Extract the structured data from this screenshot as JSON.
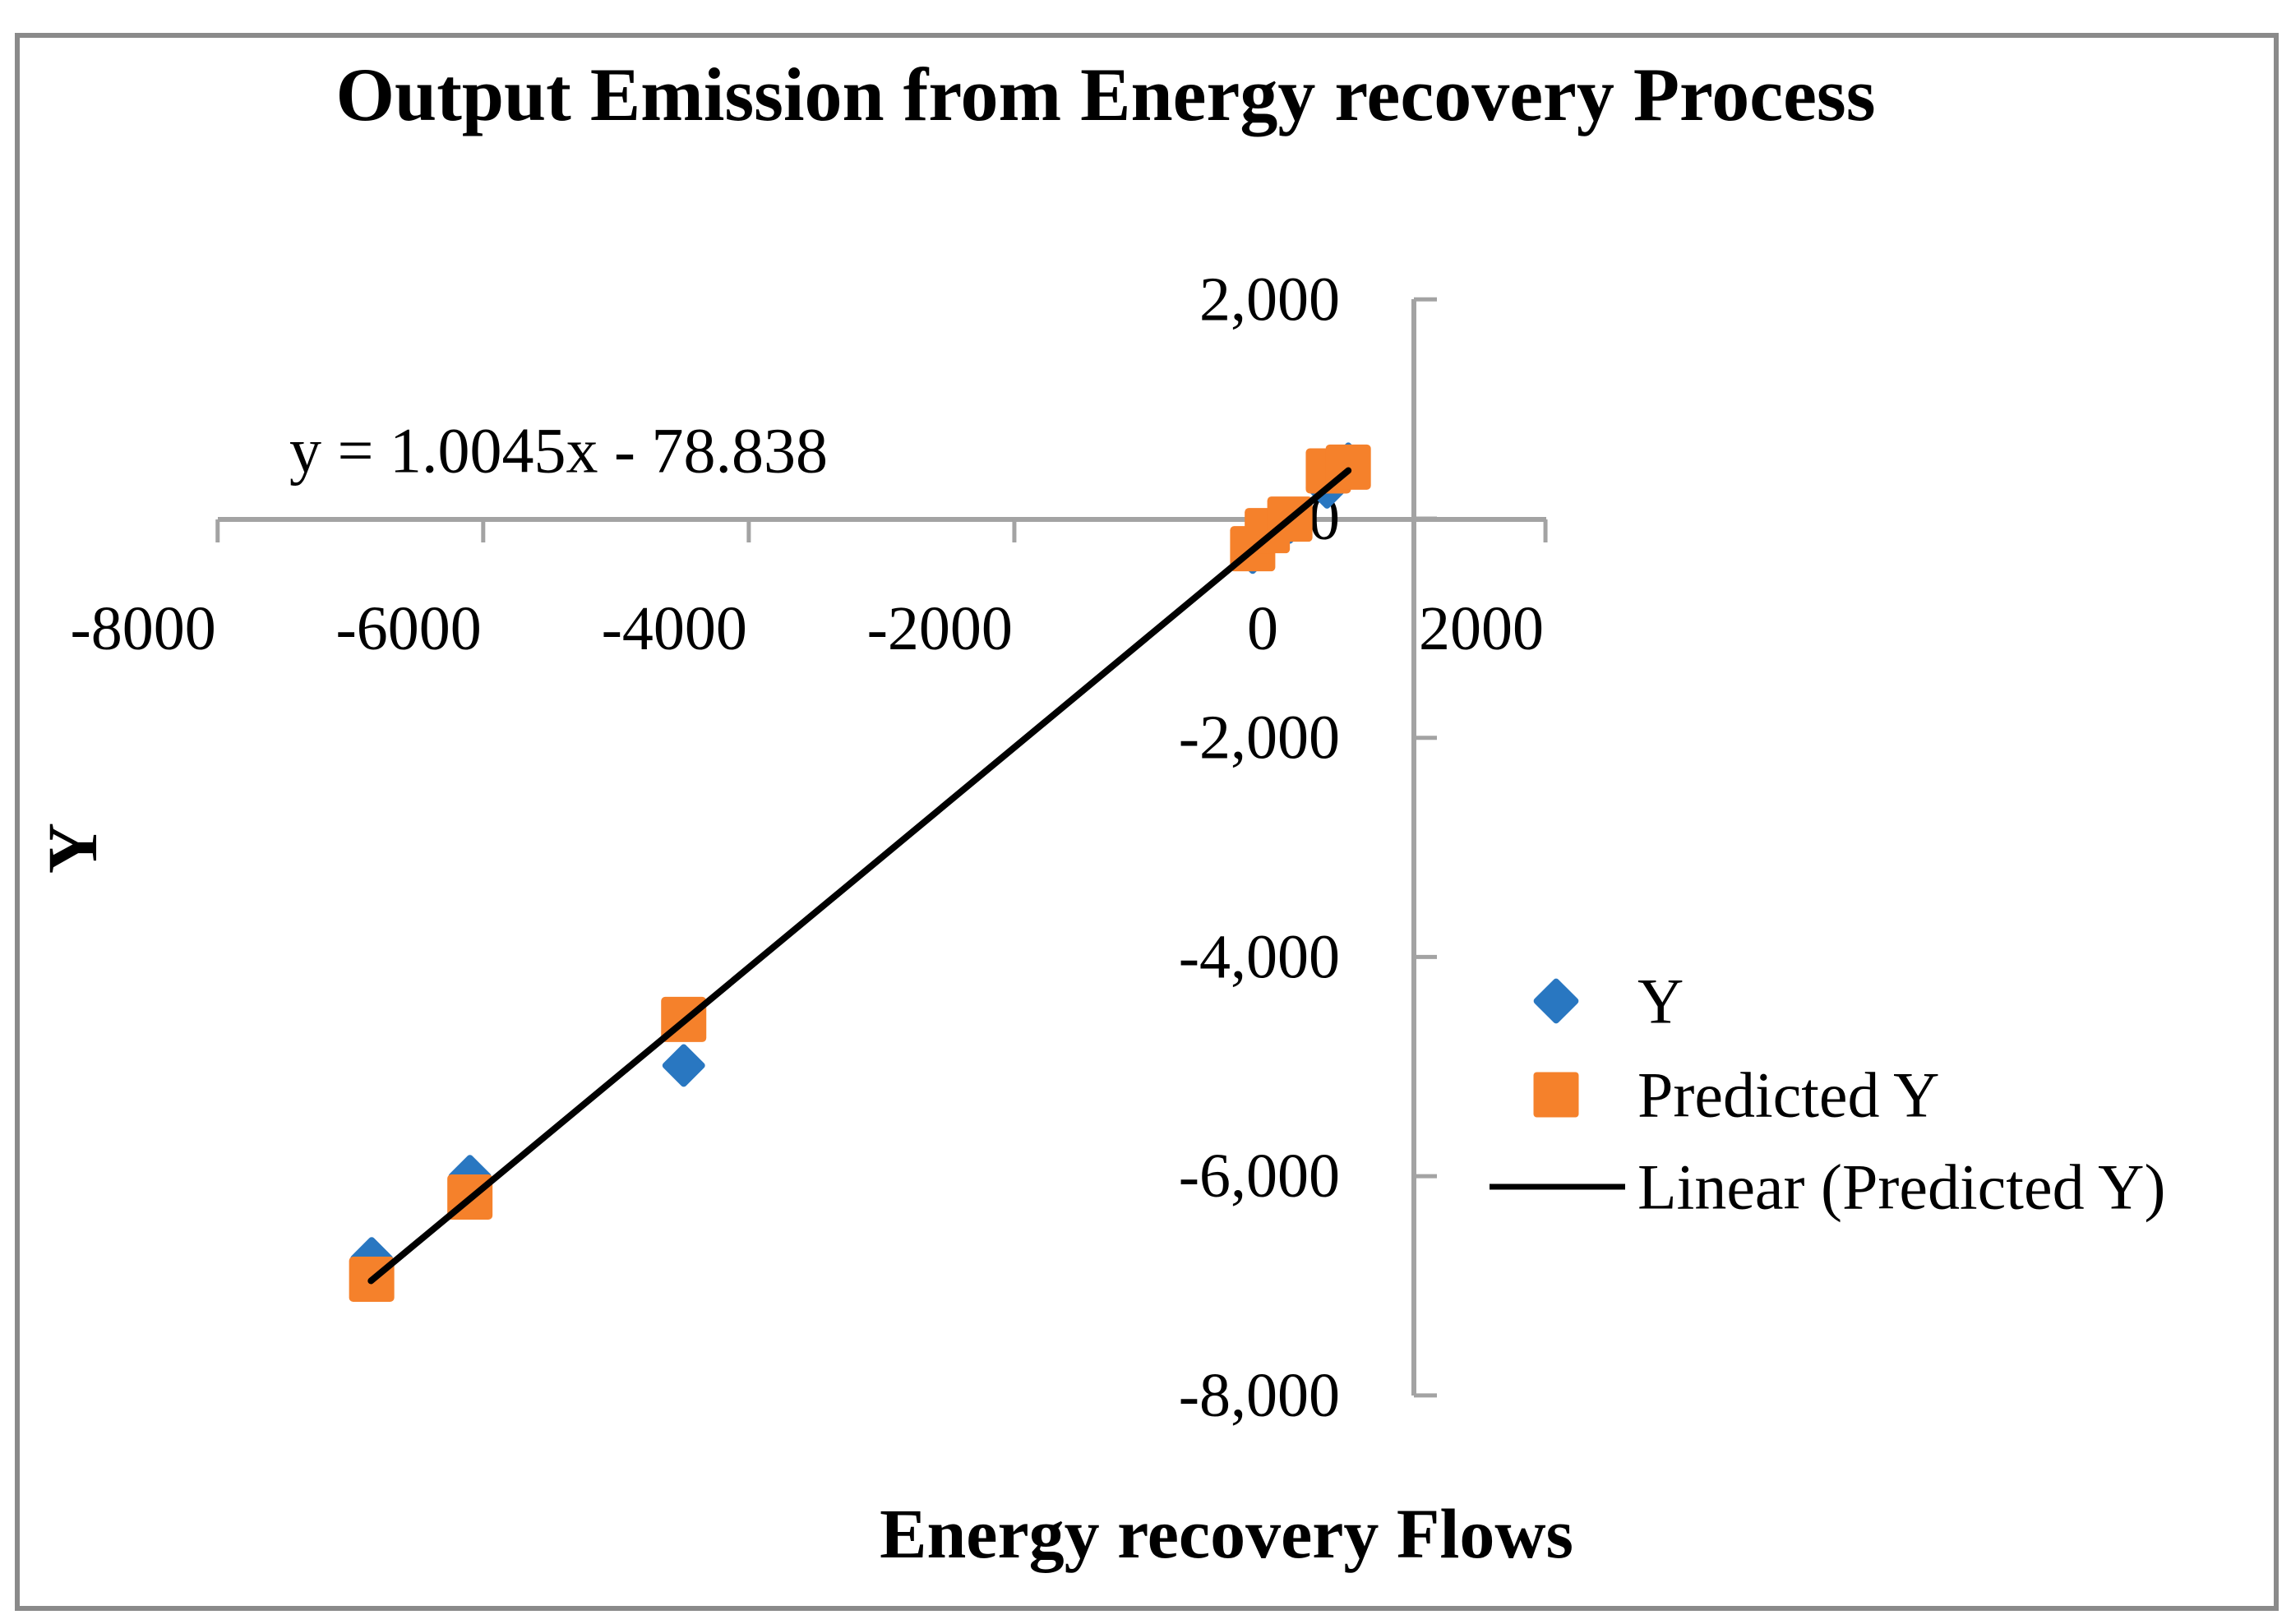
{
  "figure": {
    "background": "#ffffff",
    "border_color": "#8a8a8a",
    "axis_color": "#a3a3a3"
  },
  "chart_data": {
    "type": "scatter",
    "title": "Output Emission from Energy recovery Process",
    "equation_annotation": "y = 1.0045x - 78.838",
    "xlabel": "Energy recovery Flows",
    "ylabel": "Y",
    "grid": false,
    "x_axis": {
      "min": -8000,
      "max": 2000,
      "tick_interval": 2000,
      "tick_values": [
        -8000,
        -6000,
        -4000,
        -2000,
        0,
        2000
      ],
      "tick_labels": [
        "-8000",
        "-6000",
        "-4000",
        "-2000",
        "0",
        "2000"
      ]
    },
    "y_axis": {
      "min": -8000,
      "max": 2000,
      "tick_interval": 2000,
      "tick_values": [
        2000,
        0,
        -2000,
        -4000,
        -6000,
        -8000
      ],
      "tick_labels": [
        "2,000",
        "0",
        "-2,000",
        "-4,000",
        "-6,000",
        "-8,000"
      ],
      "crosses_x_at": 1000
    },
    "series": [
      {
        "name": "Y",
        "marker": "diamond",
        "color": "#2977C1",
        "points": [
          [
            -6840,
            -6750
          ],
          [
            -6100,
            -6000
          ],
          [
            -4490,
            -4990
          ],
          [
            -205,
            -310
          ],
          [
            -95,
            -140
          ],
          [
            75,
            -35
          ],
          [
            355,
            285
          ],
          [
            515,
            500
          ]
        ]
      },
      {
        "name": "Predicted Y",
        "marker": "square",
        "color": "#F5812B",
        "points": [
          [
            -6840,
            -6940
          ],
          [
            -6100,
            -6190
          ],
          [
            -4490,
            -4570
          ],
          [
            -205,
            -275
          ],
          [
            -95,
            -110
          ],
          [
            75,
            -5
          ],
          [
            365,
            435
          ],
          [
            515,
            470
          ]
        ]
      },
      {
        "name": "Linear (Predicted Y)",
        "type": "trendline",
        "color": "#000000",
        "slope": 1.0045,
        "intercept": -78.838,
        "x_range": [
          -6845,
          515
        ]
      }
    ],
    "legend": {
      "position": "right-middle",
      "entries": [
        "Y",
        "Predicted Y",
        "Linear (Predicted Y)"
      ]
    }
  }
}
